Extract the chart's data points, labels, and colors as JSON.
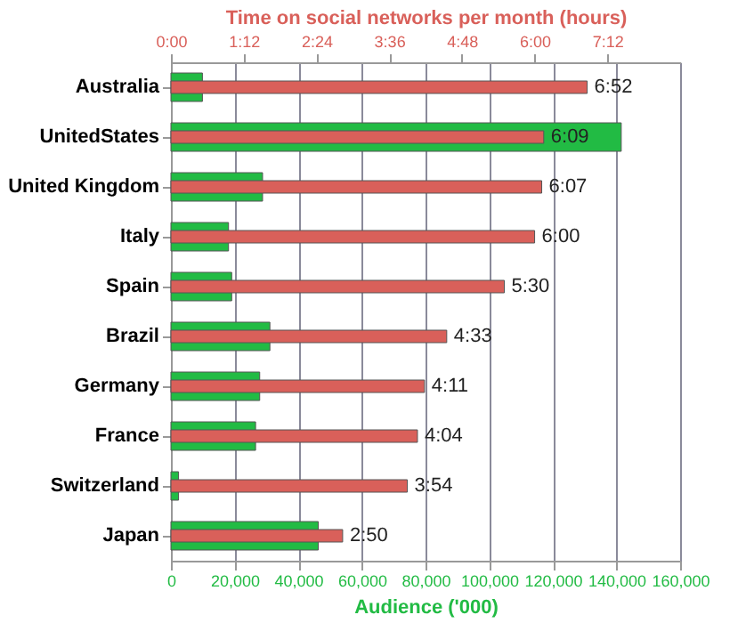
{
  "chart_data": {
    "type": "bar",
    "orientation": "horizontal",
    "xlabel": "Audience ('000)",
    "x2label": "Time on social networks per month (hours)",
    "categories": [
      "Australia",
      "UnitedStates",
      "United Kingdom",
      "Italy",
      "Spain",
      "Brazil",
      "Germany",
      "France",
      "Switzerland",
      "Japan"
    ],
    "series": [
      {
        "color": "#22bb44",
        "values": [
          9900,
          141500,
          28800,
          18100,
          19100,
          31100,
          27900,
          26600,
          2400,
          46300
        ]
      },
      {
        "color": "#d9605a",
        "axis": "x2",
        "values": [
          6.867,
          6.15,
          6.117,
          6.0,
          5.5,
          4.55,
          4.183,
          4.067,
          3.9,
          2.833
        ],
        "value_labels": [
          "6:52",
          "6:09",
          "6:07",
          "6:00",
          "5:30",
          "4:33",
          "4:11",
          "4:04",
          "3:54",
          "2:50"
        ]
      }
    ],
    "xlim": [
      0,
      160000
    ],
    "xticks": [
      {
        "value": 0,
        "label": "0"
      },
      {
        "value": 20000,
        "label": "20,000"
      },
      {
        "value": 40000,
        "label": "40,000"
      },
      {
        "value": 60000,
        "label": "60,000"
      },
      {
        "value": 80000,
        "label": "80,000"
      },
      {
        "value": 100000,
        "label": "100,000"
      },
      {
        "value": 120000,
        "label": "120,000"
      },
      {
        "value": 140000,
        "label": "140,000"
      },
      {
        "value": 160000,
        "label": "160,000"
      }
    ],
    "x2lim": [
      0,
      8.4
    ],
    "x2ticks": [
      {
        "value": 0,
        "label": "0:00"
      },
      {
        "value": 1.2,
        "label": "1:12"
      },
      {
        "value": 2.4,
        "label": "2:24"
      },
      {
        "value": 3.6,
        "label": "3:36"
      },
      {
        "value": 4.8,
        "label": "4:48"
      },
      {
        "value": 6.0,
        "label": "6:00"
      },
      {
        "value": 7.2,
        "label": "7:12"
      }
    ],
    "grid": "x"
  }
}
